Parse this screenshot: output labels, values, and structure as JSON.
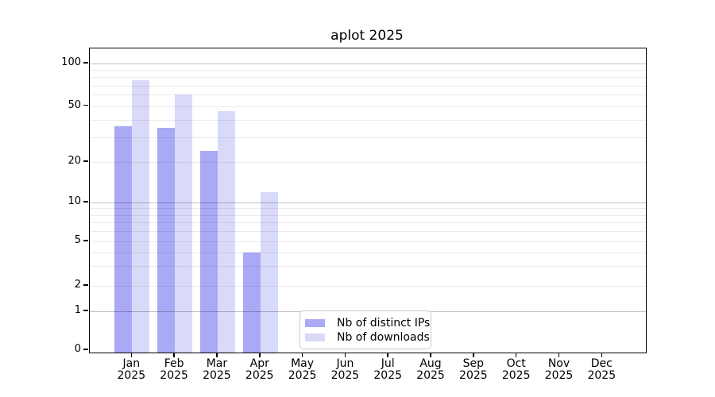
{
  "chart_data": {
    "type": "bar",
    "title": "aplot 2025",
    "categories": [
      {
        "month": "Jan",
        "year": "2025"
      },
      {
        "month": "Feb",
        "year": "2025"
      },
      {
        "month": "Mar",
        "year": "2025"
      },
      {
        "month": "Apr",
        "year": "2025"
      },
      {
        "month": "May",
        "year": "2025"
      },
      {
        "month": "Jun",
        "year": "2025"
      },
      {
        "month": "Jul",
        "year": "2025"
      },
      {
        "month": "Aug",
        "year": "2025"
      },
      {
        "month": "Sep",
        "year": "2025"
      },
      {
        "month": "Oct",
        "year": "2025"
      },
      {
        "month": "Nov",
        "year": "2025"
      },
      {
        "month": "Dec",
        "year": "2025"
      }
    ],
    "series": [
      {
        "name": "Nb of distinct IPs",
        "color": "#a9a9f6",
        "values": [
          36,
          35,
          24,
          4,
          null,
          null,
          null,
          null,
          null,
          null,
          null,
          null
        ]
      },
      {
        "name": "Nb of downloads",
        "color": "#d9daf9",
        "values": [
          76,
          60,
          46,
          12,
          null,
          null,
          null,
          null,
          null,
          null,
          null,
          null
        ]
      }
    ],
    "y_axis": {
      "scale": "log-like",
      "ticks": [
        0,
        1,
        2,
        5,
        10,
        20,
        50,
        100
      ],
      "ylim": [
        0,
        128
      ]
    },
    "xlabel": "",
    "ylabel": "",
    "grid": "horizontal major+minor, drawn over bars",
    "legend": {
      "position": "lower center-left inside plot"
    }
  }
}
